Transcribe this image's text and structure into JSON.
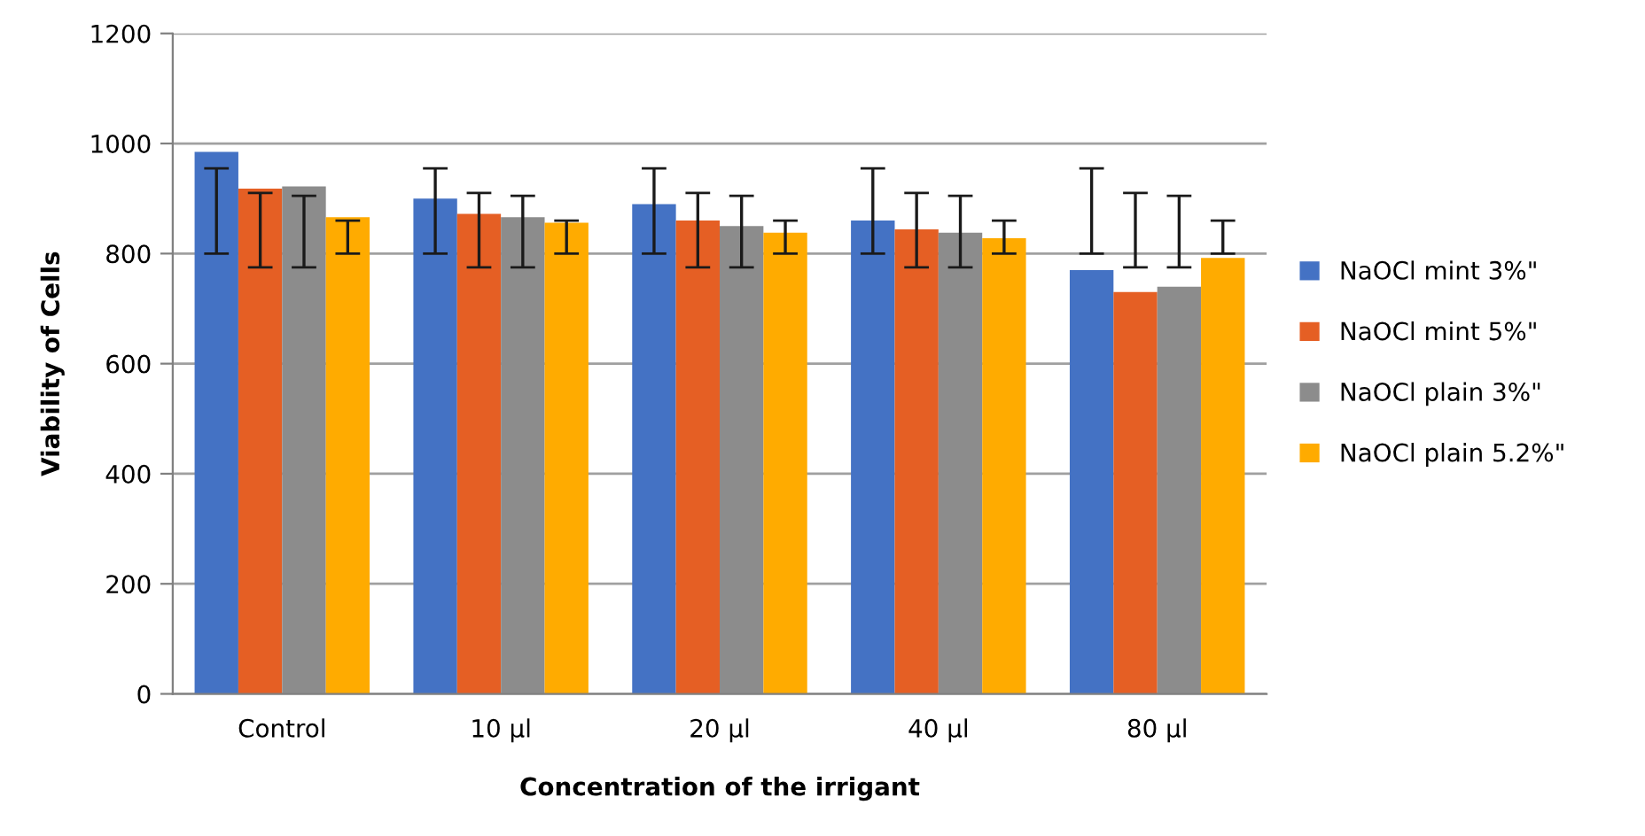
{
  "chart_data": {
    "type": "bar",
    "xlabel": "Concentration of the irrigant",
    "ylabel": "Viability of Cells",
    "categories": [
      "Control",
      "10 µl",
      "20 µl",
      "40 µl",
      "80 µl"
    ],
    "series": [
      {
        "name": "NaOCl mint 3%\"",
        "color": "#4472c4",
        "values": [
          985,
          900,
          890,
          860,
          770
        ],
        "errors": [
          [
            800,
            955
          ],
          [
            800,
            955
          ],
          [
            800,
            955
          ],
          [
            800,
            955
          ],
          [
            800,
            955
          ]
        ]
      },
      {
        "name": "NaOCl mint 5%\"",
        "color": "#e55f24",
        "values": [
          918,
          872,
          860,
          844,
          730
        ],
        "errors": [
          [
            775,
            910
          ],
          [
            775,
            910
          ],
          [
            775,
            910
          ],
          [
            775,
            910
          ],
          [
            775,
            910
          ]
        ]
      },
      {
        "name": "NaOCl plain 3%\"",
        "color": "#8c8c8c",
        "values": [
          922,
          866,
          850,
          838,
          740
        ],
        "errors": [
          [
            775,
            905
          ],
          [
            775,
            905
          ],
          [
            775,
            905
          ],
          [
            775,
            905
          ],
          [
            775,
            905
          ]
        ]
      },
      {
        "name": "NaOCl plain 5.2%\"",
        "color": "#ffab00",
        "values": [
          866,
          856,
          838,
          828,
          792
        ],
        "errors": [
          [
            800,
            860
          ],
          [
            800,
            860
          ],
          [
            800,
            860
          ],
          [
            800,
            860
          ],
          [
            800,
            860
          ]
        ]
      }
    ],
    "ylim": [
      0,
      1200
    ],
    "yticks": [
      0,
      200,
      400,
      600,
      800,
      1000,
      1200
    ],
    "grid": "y",
    "legend": "right"
  }
}
